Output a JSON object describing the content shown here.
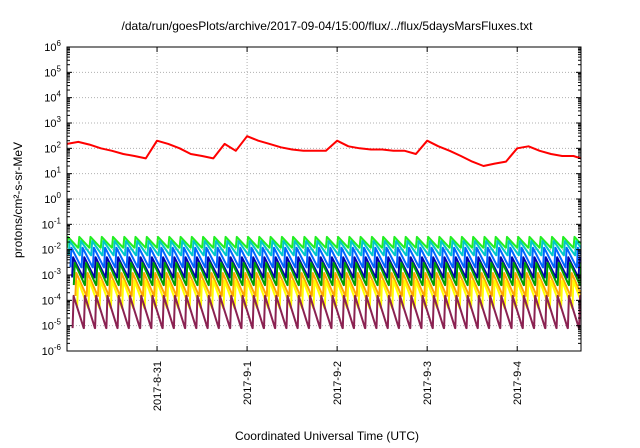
{
  "chart_data": {
    "type": "line",
    "title": "/data/run/goesPlots/archive/2017-09-04/15:00/flux/../flux/5daysMarsFluxes.txt",
    "xlabel": "Coordinated Universal Time (UTC)",
    "ylabel": "protons/cm²-s-sr-MeV",
    "y_scale": "log",
    "ylim": [
      1e-06,
      1000000.0
    ],
    "xlim": [
      "2017-08-30 00:00",
      "2017-09-04 17:00"
    ],
    "y_ticks": [
      {
        "base": "10",
        "exp": "-6"
      },
      {
        "base": "10",
        "exp": "-5"
      },
      {
        "base": "10",
        "exp": "-4"
      },
      {
        "base": "10",
        "exp": "-3"
      },
      {
        "base": "10",
        "exp": "-2"
      },
      {
        "base": "10",
        "exp": "-1"
      },
      {
        "base": "10",
        "exp": "0"
      },
      {
        "base": "10",
        "exp": "1"
      },
      {
        "base": "10",
        "exp": "2"
      },
      {
        "base": "10",
        "exp": "3"
      },
      {
        "base": "10",
        "exp": "4"
      },
      {
        "base": "10",
        "exp": "5"
      },
      {
        "base": "10",
        "exp": "6"
      }
    ],
    "x_ticks": [
      "2017-8-31",
      "2017-9-1",
      "2017-9-2",
      "2017-9-3",
      "2017-9-4"
    ],
    "grid": true,
    "legend": "none",
    "series": [
      {
        "color": "#ff0000",
        "style": "smooth",
        "x": [
          "2017-08-30 00:00",
          "2017-08-30 03:00",
          "2017-08-30 06:00",
          "2017-08-30 09:00",
          "2017-08-30 12:00",
          "2017-08-30 15:00",
          "2017-08-30 18:00",
          "2017-08-30 21:00",
          "2017-08-31 00:00",
          "2017-08-31 03:00",
          "2017-08-31 06:00",
          "2017-08-31 09:00",
          "2017-08-31 12:00",
          "2017-08-31 15:00",
          "2017-08-31 18:00",
          "2017-08-31 21:00",
          "2017-09-01 00:00",
          "2017-09-01 03:00",
          "2017-09-01 06:00",
          "2017-09-01 09:00",
          "2017-09-01 12:00",
          "2017-09-01 15:00",
          "2017-09-01 18:00",
          "2017-09-01 21:00",
          "2017-09-02 00:00",
          "2017-09-02 03:00",
          "2017-09-02 06:00",
          "2017-09-02 09:00",
          "2017-09-02 12:00",
          "2017-09-02 15:00",
          "2017-09-02 18:00",
          "2017-09-02 21:00",
          "2017-09-03 00:00",
          "2017-09-03 03:00",
          "2017-09-03 06:00",
          "2017-09-03 09:00",
          "2017-09-03 12:00",
          "2017-09-03 15:00",
          "2017-09-03 18:00",
          "2017-09-03 21:00",
          "2017-09-04 00:00",
          "2017-09-04 03:00",
          "2017-09-04 06:00",
          "2017-09-04 09:00",
          "2017-09-04 12:00",
          "2017-09-04 15:00",
          "2017-09-04 17:00"
        ],
        "values": [
          150,
          180,
          140,
          100,
          80,
          60,
          50,
          40,
          200,
          150,
          100,
          60,
          50,
          40,
          150,
          80,
          300,
          200,
          150,
          110,
          90,
          80,
          80,
          80,
          200,
          120,
          100,
          90,
          90,
          80,
          80,
          60,
          200,
          120,
          80,
          50,
          30,
          20,
          25,
          30,
          100,
          120,
          80,
          60,
          50,
          50,
          40
        ]
      },
      {
        "name": "",
        "color": "#22ee22",
        "base": 0.012,
        "peak": 0.032,
        "phase": 0.0,
        "style": "sawtooth"
      },
      {
        "name": "",
        "color": "#00c8c8",
        "base": 0.006,
        "peak": 0.022,
        "phase": 0.15,
        "style": "sawtooth"
      },
      {
        "name": "",
        "color": "#0066ff",
        "base": 0.002,
        "peak": 0.012,
        "phase": 0.3,
        "style": "sawtooth"
      },
      {
        "name": "",
        "color": "#0000aa",
        "base": 0.0008,
        "peak": 0.005,
        "phase": 0.45,
        "style": "sawtooth"
      },
      {
        "name": "",
        "color": "#00a000",
        "base": 0.0004,
        "peak": 0.003,
        "phase": 0.6,
        "style": "sawtooth"
      },
      {
        "name": "",
        "color": "#ffa500",
        "base": 0.00015,
        "peak": 0.0012,
        "phase": 0.75,
        "style": "sawtooth"
      },
      {
        "name": "",
        "color": "#ffff00",
        "base": 5e-05,
        "peak": 0.0006,
        "phase": 0.9,
        "style": "sawtooth"
      },
      {
        "name": "",
        "color": "#8b2252",
        "base": 8e-06,
        "peak": 0.00015,
        "phase": 0.5,
        "style": "sawtooth"
      }
    ],
    "sawtooth_period_hours": 3
  }
}
